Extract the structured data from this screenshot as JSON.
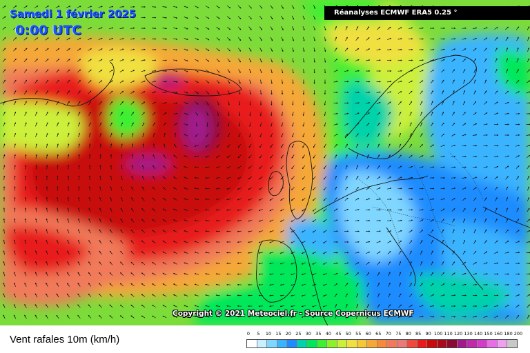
{
  "map": {
    "date": "Samedi 1 février 2025",
    "time": "0:00 UTC",
    "model": "Réanalyses ECMWF ERA5 0.25 °",
    "copyright": "Copyright © 2021 Meteociel.fr - Source Copernicus ECMWF",
    "variable": "Vent rafales 10m (km/h)"
  },
  "legend": {
    "ticks": [
      "0",
      "5",
      "10",
      "15",
      "20",
      "25",
      "30",
      "35",
      "40",
      "45",
      "50",
      "55",
      "60",
      "65",
      "70",
      "75",
      "80",
      "85",
      "90",
      "100",
      "110",
      "120",
      "130",
      "140",
      "150",
      "160",
      "180",
      "200"
    ],
    "colors": [
      "#ffffff",
      "#c8f0ff",
      "#7fd6ff",
      "#3ab4ff",
      "#1e8cff",
      "#00d2aa",
      "#00e85a",
      "#3ef032",
      "#8ef02a",
      "#ccf03a",
      "#f0e040",
      "#f5c838",
      "#f5a838",
      "#f58a3c",
      "#f07a5a",
      "#e87a78",
      "#f04a3c",
      "#e81a1a",
      "#c80a0a",
      "#a80a1a",
      "#8c0a32",
      "#a01a8c",
      "#c02aaa",
      "#d23cc8",
      "#e66ee6",
      "#f0a0f0",
      "#c8c8c8"
    ]
  }
}
